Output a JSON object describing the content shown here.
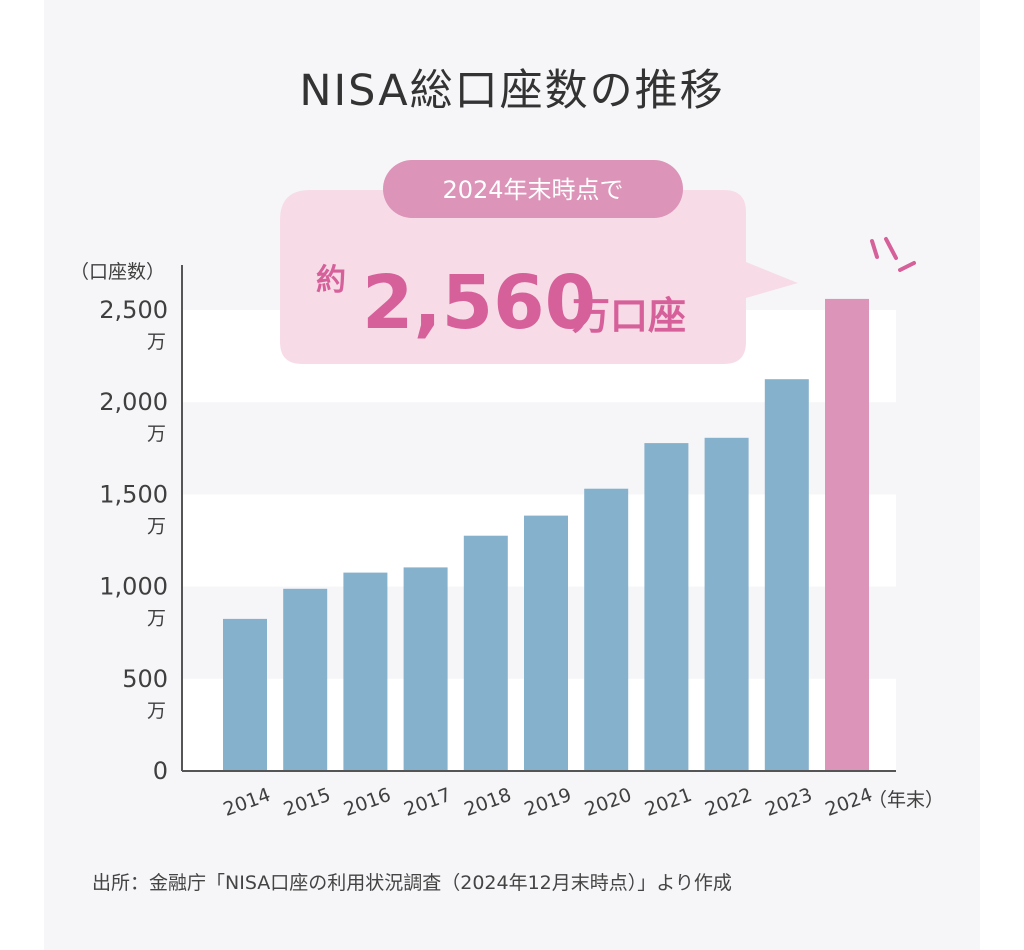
{
  "title": "NISA総口座数の推移",
  "source": "出所：金融庁「NISA口座の利用状況調査（2024年12月末時点）」より作成",
  "callout": {
    "pill": "2024年末時点で",
    "prefix": "約",
    "number": "2,560",
    "suffix": "万口座"
  },
  "colors": {
    "bar": "#86b1cd",
    "highlight": "#dc94b8",
    "accent": "#d6609a",
    "pill": "#dc94b8",
    "bubble": "#f7dce8"
  },
  "chart_data": {
    "type": "bar",
    "categories": [
      "2014",
      "2015",
      "2016",
      "2017",
      "2018",
      "2019",
      "2020",
      "2021",
      "2022",
      "2023",
      "2024"
    ],
    "values": [
      825,
      988,
      1076,
      1104,
      1276,
      1385,
      1531,
      1778,
      1807,
      2125,
      2560
    ],
    "highlight_index": 10,
    "ylim": [
      0,
      2500
    ],
    "yticks": [
      {
        "value": 0,
        "label": "0",
        "unit": ""
      },
      {
        "value": 500,
        "label": "500",
        "unit": "万"
      },
      {
        "value": 1000,
        "label": "1,000",
        "unit": "万"
      },
      {
        "value": 1500,
        "label": "1,500",
        "unit": "万"
      },
      {
        "value": 2000,
        "label": "2,000",
        "unit": "万"
      },
      {
        "value": 2500,
        "label": "2,500",
        "unit": "万"
      }
    ],
    "ylabel": "（口座数）",
    "xlabel": "（年末）",
    "grid": "horizontal bands"
  }
}
